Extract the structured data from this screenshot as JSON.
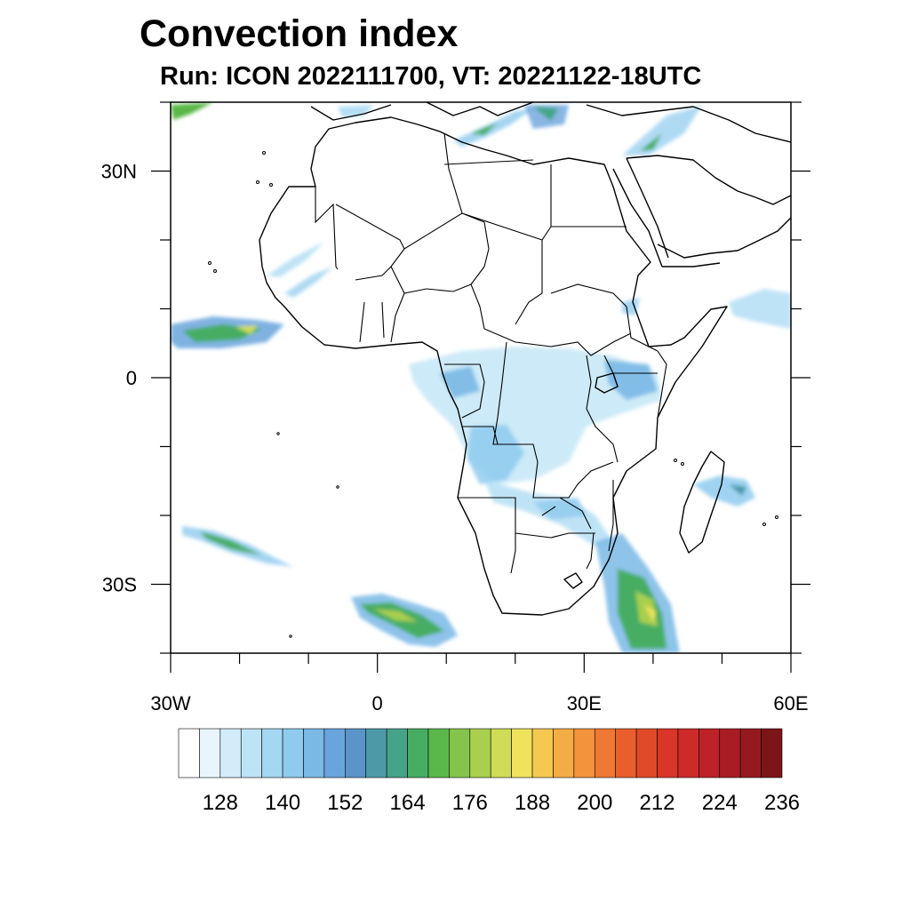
{
  "title": "Convection index",
  "subtitle": "Run: ICON 2022111700,  VT: 20221122-18UTC",
  "map": {
    "region": "Africa",
    "lon_range": [
      -30,
      60
    ],
    "lat_range": [
      -40,
      40
    ],
    "lat_ticks": [
      {
        "value": 30,
        "label": "30N"
      },
      {
        "value": 0,
        "label": "0"
      },
      {
        "value": -30,
        "label": "30S"
      }
    ],
    "lon_ticks": [
      {
        "value": -30,
        "label": "30W"
      },
      {
        "value": 0,
        "label": "0"
      },
      {
        "value": 30,
        "label": "30E"
      },
      {
        "value": 60,
        "label": "60E"
      }
    ]
  },
  "colorbar": {
    "labels": [
      "128",
      "140",
      "152",
      "164",
      "176",
      "188",
      "200",
      "212",
      "224",
      "236"
    ],
    "colors": [
      "#ffffff",
      "#e8f5fc",
      "#d2ecf9",
      "#bce3f6",
      "#a4d7f2",
      "#8ecbee",
      "#7ab8e6",
      "#6aa4dc",
      "#5a94c8",
      "#4c9aa8",
      "#45a487",
      "#47ad63",
      "#5ab84a",
      "#84c44b",
      "#a9cf4f",
      "#cfdc55",
      "#efe25c",
      "#f5c850",
      "#f4ad44",
      "#f3933b",
      "#ee7834",
      "#e85e2c",
      "#e04a29",
      "#d93528",
      "#cd2a2a",
      "#bd2228",
      "#aa1c24",
      "#951a1f",
      "#7d1518"
    ]
  }
}
